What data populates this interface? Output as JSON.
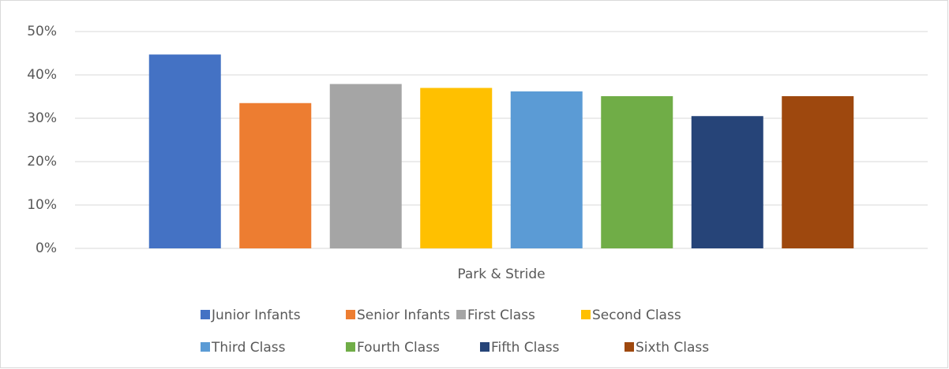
{
  "chart_data": {
    "type": "bar",
    "categories": [
      "Park & Stride"
    ],
    "series": [
      {
        "name": "Junior Infants",
        "color": "#4472c4",
        "values": [
          44.7
        ]
      },
      {
        "name": "Senior Infants",
        "color": "#ed7d31",
        "values": [
          33.5
        ]
      },
      {
        "name": "First Class",
        "color": "#a5a5a5",
        "values": [
          37.9
        ]
      },
      {
        "name": "Second Class",
        "color": "#ffc000",
        "values": [
          37.0
        ]
      },
      {
        "name": "Third Class",
        "color": "#5b9bd5",
        "values": [
          36.2
        ]
      },
      {
        "name": "Fourth Class",
        "color": "#70ad47",
        "values": [
          35.1
        ]
      },
      {
        "name": "Fifth Class",
        "color": "#264478",
        "values": [
          30.5
        ]
      },
      {
        "name": "Sixth Class",
        "color": "#9e480e",
        "values": [
          35.1
        ]
      }
    ],
    "ylim": [
      0,
      50
    ],
    "yticks": [
      {
        "value": 0,
        "label": "0%"
      },
      {
        "value": 10,
        "label": "10%"
      },
      {
        "value": 20,
        "label": "20%"
      },
      {
        "value": 30,
        "label": "30%"
      },
      {
        "value": 40,
        "label": "40%"
      },
      {
        "value": 50,
        "label": "50%"
      }
    ],
    "grid": true,
    "legend": "bottom"
  }
}
